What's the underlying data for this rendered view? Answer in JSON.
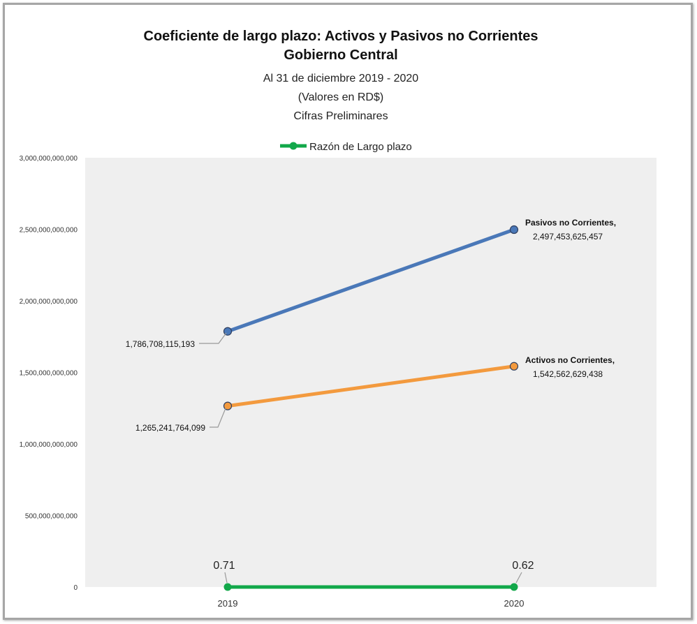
{
  "chart_data": {
    "type": "line",
    "title": "Coeficiente de largo plazo: Activos y Pasivos no Corrientes",
    "title2": "Gobierno Central",
    "subtitle1": "Al 31 de diciembre 2019 - 2020",
    "subtitle2": "(Valores en RD$)",
    "subtitle3": "Cifras Preliminares",
    "categories": [
      "2019",
      "2020"
    ],
    "ylim": [
      0,
      3000000000000
    ],
    "yticks": [
      "0",
      "500,000,000,000",
      "1,000,000,000,000",
      "1,500,000,000,000",
      "2,000,000,000,000",
      "2,500,000,000,000",
      "3,000,000,000,000"
    ],
    "legend": {
      "label": "Razón de Largo plazo",
      "position": "top"
    },
    "grid": false,
    "plot_background": "#efefef",
    "series": [
      {
        "name": "Pasivos no Corrientes",
        "color": "#4a78b8",
        "values": [
          1786708115193,
          2497453625457
        ],
        "labels": [
          "1,786,708,115,193",
          "2,497,453,625,457"
        ]
      },
      {
        "name": "Activos no Corrientes",
        "color": "#f39a3e",
        "values": [
          1265241764099,
          1542562629438
        ],
        "labels": [
          "1,265,241,764,099",
          "1,542,562,629,438"
        ]
      },
      {
        "name": "Razón de Largo plazo",
        "color": "#12a84a",
        "values": [
          0.71,
          0.62
        ],
        "labels": [
          "0.71",
          "0.62"
        ]
      }
    ]
  }
}
